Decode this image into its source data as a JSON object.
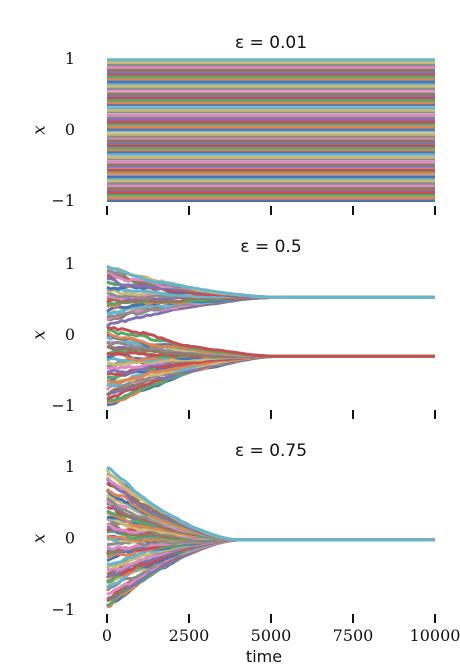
{
  "chart_data": [
    {
      "type": "line",
      "title": "ε = 0.01",
      "ylabel": "x",
      "xlabel": "",
      "xlim": [
        0,
        10000
      ],
      "ylim": [
        -1,
        1
      ],
      "yticks": [
        "1",
        "0",
        "−1"
      ],
      "xticks": [
        0,
        2500,
        5000,
        7500,
        10000
      ],
      "xtick_labels_shown": false,
      "n_trajectories": 60,
      "behaviour": "static",
      "clusters": [],
      "grid": false
    },
    {
      "type": "line",
      "title": "ε = 0.5",
      "ylabel": "x",
      "xlabel": "",
      "xlim": [
        0,
        10000
      ],
      "ylim": [
        -1,
        1
      ],
      "yticks": [
        "1",
        "0",
        "−1"
      ],
      "xticks": [
        0,
        2500,
        5000,
        7500,
        10000
      ],
      "xtick_labels_shown": false,
      "n_trajectories": 60,
      "behaviour": "converge",
      "clusters": [
        0.53,
        -0.3
      ],
      "converge_time": 5200,
      "grid": false
    },
    {
      "type": "line",
      "title": "ε = 0.75",
      "ylabel": "x",
      "xlabel": "time",
      "xlim": [
        0,
        10000
      ],
      "ylim": [
        -1,
        1
      ],
      "yticks": [
        "1",
        "0",
        "−1"
      ],
      "xticks": [
        0,
        2500,
        5000,
        7500,
        10000
      ],
      "xtick_labels": [
        "0",
        "2500",
        "5000",
        "7500",
        "10000"
      ],
      "xtick_labels_shown": true,
      "n_trajectories": 60,
      "behaviour": "converge",
      "clusters": [
        -0.02
      ],
      "converge_time": 4000,
      "grid": false
    }
  ],
  "palette": [
    "#4c72b0",
    "#dd8452",
    "#55a868",
    "#c44e52",
    "#8172b3",
    "#937860",
    "#da8bc3",
    "#8c8c8c",
    "#ccb974",
    "#64b5cd"
  ]
}
